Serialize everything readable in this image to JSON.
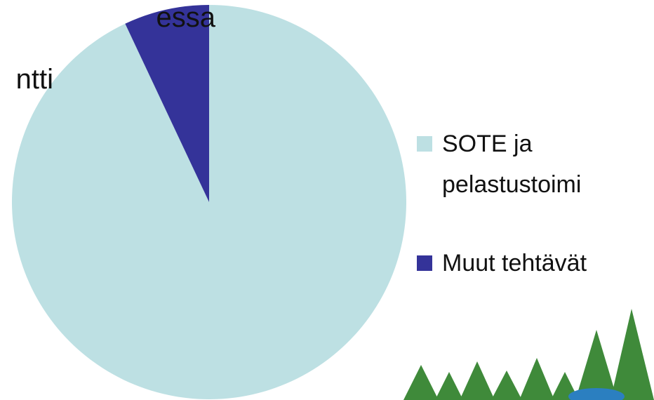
{
  "slide_text": [
    "essa",
    "ntti"
  ],
  "chart_data": {
    "type": "pie",
    "categories": [
      "SOTE ja pelastustoimi",
      "Muut tehtävät"
    ],
    "values": [
      93,
      7
    ],
    "colors": [
      "#bde0e3",
      "#343399"
    ],
    "legend": "right"
  }
}
